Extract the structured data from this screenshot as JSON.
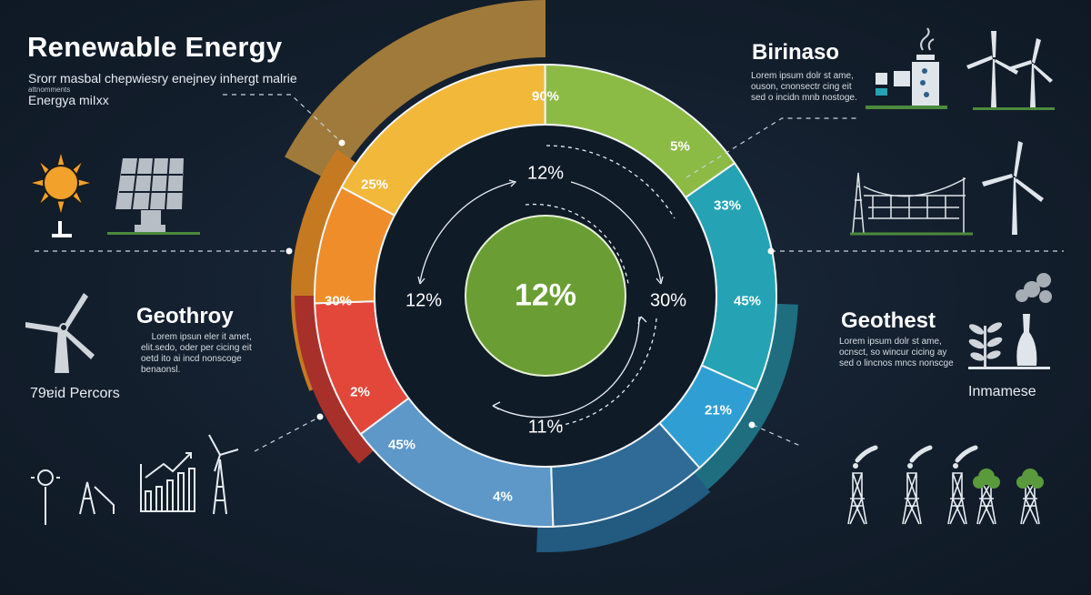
{
  "header": {
    "title": "Renewable Energy",
    "subtitle": "Srorr masbal chepwiesry enejney inhergt malrie",
    "tiny_note": "attnomments",
    "subtitle2": "Energya miIxx"
  },
  "panels": {
    "top_right": {
      "title": "Birinaso",
      "body": [
        "Lorem ipsum dolr st ame,",
        "ouson, cnonsectr cing eit",
        "sed o incidn mnb nostoge."
      ]
    },
    "mid_left": {
      "title": "Geothroy",
      "body": [
        "Lorem ipsun eler it amet,",
        "elit.sedo, oder per cicing eit",
        "oetd ito ai incd nonscoge",
        "benaonsl."
      ],
      "caption": "79ɐid Percors"
    },
    "mid_right": {
      "title": "Geothest",
      "body": [
        "Lorem ipsum dolr st ame,",
        "ocnsct, so wincur cicing ay",
        "sed o lincnos mncs nonscge"
      ],
      "caption": "Inmamese"
    }
  },
  "colors": {
    "background": "#14202f",
    "yellow": "#f2b83a",
    "green": "#8cbb45",
    "teal": "#25a3b4",
    "sky": "#2f9fd3",
    "navy_blue": "#2f6b96",
    "steel_blue": "#5d98c9",
    "red": "#e2473a",
    "orange": "#ee8d2a",
    "center": "#6a9e34"
  },
  "icons": [
    "sun-icon",
    "solar-panel-icon",
    "wind-turbine-icon",
    "factory-icon",
    "power-line-icon",
    "plant-icon",
    "vase-icon",
    "bar-chart-icon",
    "pylon-icon",
    "tree-icon"
  ],
  "chart_data": {
    "type": "pie",
    "variant": "donut",
    "title": "",
    "center_label": "12%",
    "inner_labels": [
      "12%",
      "30%",
      "11%",
      "12%"
    ],
    "segments": [
      {
        "color": "#f2b83a",
        "share": 17.2,
        "labels": [
          "90%",
          "25%"
        ]
      },
      {
        "color": "#8cbb45",
        "share": 15.3,
        "labels": [
          "5%"
        ]
      },
      {
        "color": "#25a3b4",
        "share": 16.4,
        "labels": [
          "33%",
          "45%"
        ]
      },
      {
        "color": "#2f9fd3",
        "share": 6.7,
        "labels": [
          "21%"
        ]
      },
      {
        "color": "#2f6b96",
        "share": 11.1,
        "labels": []
      },
      {
        "color": "#5d98c9",
        "share": 15.3,
        "labels": [
          "45%",
          "4%"
        ]
      },
      {
        "color": "#e2473a",
        "share": 9.7,
        "labels": [
          "2%",
          "30%"
        ]
      },
      {
        "color": "#ee8d2a",
        "share": 8.3,
        "labels": []
      }
    ]
  }
}
